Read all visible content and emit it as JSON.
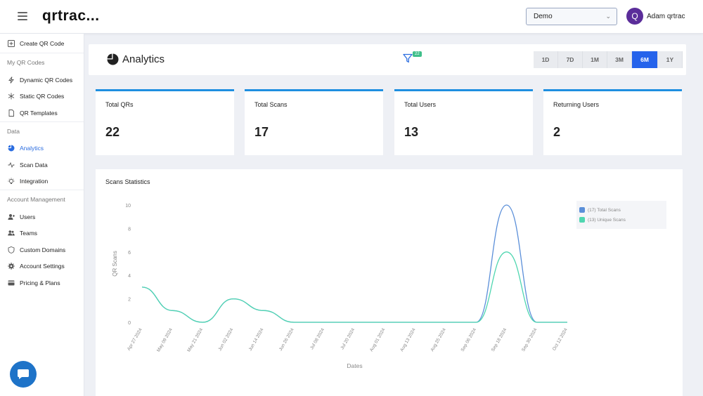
{
  "header": {
    "brand": "qrtrac...",
    "workspace": "Demo",
    "avatar_letter": "Q",
    "user_name": "Adam qrtrac"
  },
  "sidebar": {
    "create": "Create QR Code",
    "sec_my_codes": "My QR Codes",
    "dynamic": "Dynamic QR Codes",
    "static": "Static QR Codes",
    "templates": "QR Templates",
    "sec_data": "Data",
    "analytics": "Analytics",
    "scan_data": "Scan Data",
    "integration": "Integration",
    "sec_account": "Account Management",
    "users": "Users",
    "teams": "Teams",
    "domains": "Custom Domains",
    "settings": "Account Settings",
    "pricing": "Pricing & Plans"
  },
  "analytics": {
    "title": "Analytics",
    "filter_badge": "22",
    "ranges": [
      "1D",
      "7D",
      "1M",
      "3M",
      "6M",
      "1Y"
    ],
    "active_range": "6M"
  },
  "stats": [
    {
      "label": "Total QRs",
      "value": "22"
    },
    {
      "label": "Total Scans",
      "value": "17"
    },
    {
      "label": "Total Users",
      "value": "13"
    },
    {
      "label": "Returning Users",
      "value": "2"
    }
  ],
  "colors": {
    "total_scans": "#5b8fd9",
    "unique_scans": "#4fd6b0",
    "accent": "#2563eb"
  },
  "chart_data": {
    "type": "line",
    "title": "Scans Statistics",
    "xlabel": "Dates",
    "ylabel": "QR Scans",
    "ylim": [
      0,
      10
    ],
    "yticks": [
      0,
      2,
      4,
      6,
      8,
      10
    ],
    "x": [
      "Apr 27 2024",
      "May 09 2024",
      "May 21 2024",
      "Jun 02 2024",
      "Jun 14 2024",
      "Jun 26 2024",
      "Jul 08 2024",
      "Jul 20 2024",
      "Aug 01 2024",
      "Aug 13 2024",
      "Aug 25 2024",
      "Sep 06 2024",
      "Sep 18 2024",
      "Sep 30 2024",
      "Oct 12 2024"
    ],
    "series": [
      {
        "name": "(17) Total Scans",
        "values": [
          3,
          1,
          0,
          2,
          1,
          0,
          0,
          0,
          0,
          0,
          0,
          0,
          10,
          0,
          0
        ]
      },
      {
        "name": "(13) Unique Scans",
        "values": [
          3,
          1,
          0,
          2,
          1,
          0,
          0,
          0,
          0,
          0,
          0,
          0,
          6,
          0,
          0
        ]
      }
    ],
    "legend": "top-right"
  }
}
